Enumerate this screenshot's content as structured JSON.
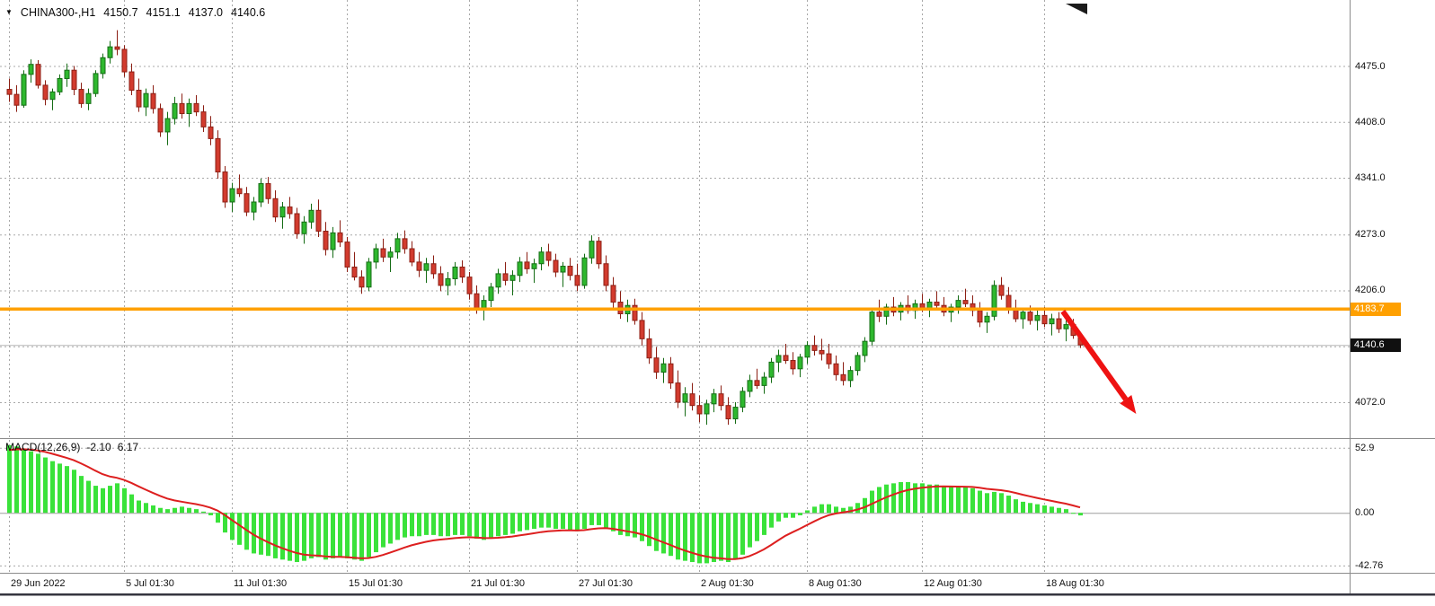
{
  "window": {
    "bg": "#ffffff"
  },
  "header": {
    "collapse_icon": "▼",
    "symbol_period": "CHINA300-,H1",
    "open": "4150.7",
    "high": "4151.1",
    "low": "4137.0",
    "close": "4140.6"
  },
  "indicator_label": {
    "name": "MACD(12,26,9)",
    "main_value": "-2.10",
    "signal_value": "6.17"
  },
  "colors": {
    "up_fill": "#2eb82e",
    "up_stroke": "#156c15",
    "down_fill": "#d23b2e",
    "down_stroke": "#8c1f14",
    "hist": "#3ae23a",
    "signal": "#dd1f1f",
    "hline": "#ffa000",
    "grid": "#a8a8a8",
    "arrow": "#ee1212",
    "bid_line": "#b8b8b8",
    "separator": "#8c8c8c",
    "text": "#111111"
  },
  "price_badges": [
    {
      "name": "hline-price-badge",
      "text": "4183.7",
      "price": 4183.7,
      "bg": "#ffa000",
      "fg": "#ffffff"
    },
    {
      "name": "last-price-badge",
      "text": "4140.6",
      "price": 4140.6,
      "bg": "#101010",
      "fg": "#ffffff"
    }
  ],
  "chart_data": {
    "type": "candlestick",
    "symbol": "CHINA300-",
    "timeframe": "H1",
    "ylim": [
      4030,
      4552
    ],
    "y_ticks": [
      {
        "price": 4475.0,
        "label": "4475.0"
      },
      {
        "price": 4408.0,
        "label": "4408.0"
      },
      {
        "price": 4341.0,
        "label": "4341.0"
      },
      {
        "price": 4273.0,
        "label": "4273.0"
      },
      {
        "price": 4206.0,
        "label": "4206.0"
      },
      {
        "price": 4072.0,
        "label": "4072.0"
      }
    ],
    "grid_levels": [
      4475,
      4408,
      4341,
      4273,
      4206,
      4139,
      4072
    ],
    "x_ticks": [
      {
        "index": 0,
        "label": "29 Jun 2022"
      },
      {
        "index": 16,
        "label": "5 Jul 01:30"
      },
      {
        "index": 31,
        "label": "11 Jul 01:30"
      },
      {
        "index": 47,
        "label": "15 Jul 01:30"
      },
      {
        "index": 64,
        "label": "21 Jul 01:30"
      },
      {
        "index": 79,
        "label": "27 Jul 01:30"
      },
      {
        "index": 96,
        "label": "2 Aug 01:30"
      },
      {
        "index": 111,
        "label": "8 Aug 01:30"
      },
      {
        "index": 127,
        "label": "12 Aug 01:30"
      },
      {
        "index": 144,
        "label": "18 Aug 01:30"
      }
    ],
    "hline": {
      "price": 4183.7
    },
    "last_price": 4140.6,
    "arrow": {
      "from": {
        "index": 146.6,
        "price": 4181
      },
      "to": {
        "index": 156.8,
        "price": 4058
      }
    },
    "candles": [
      [
        4447,
        4460,
        4432,
        4441
      ],
      [
        4441,
        4452,
        4420,
        4428
      ],
      [
        4428,
        4470,
        4425,
        4465
      ],
      [
        4465,
        4483,
        4455,
        4477
      ],
      [
        4477,
        4482,
        4448,
        4452
      ],
      [
        4452,
        4458,
        4428,
        4435
      ],
      [
        4435,
        4448,
        4422,
        4444
      ],
      [
        4444,
        4465,
        4440,
        4460
      ],
      [
        4460,
        4478,
        4450,
        4470
      ],
      [
        4470,
        4475,
        4440,
        4447
      ],
      [
        4447,
        4455,
        4425,
        4430
      ],
      [
        4430,
        4448,
        4422,
        4442
      ],
      [
        4442,
        4470,
        4438,
        4466
      ],
      [
        4466,
        4490,
        4460,
        4485
      ],
      [
        4485,
        4505,
        4478,
        4498
      ],
      [
        4498,
        4518,
        4488,
        4495
      ],
      [
        4495,
        4500,
        4462,
        4468
      ],
      [
        4468,
        4478,
        4440,
        4446
      ],
      [
        4446,
        4460,
        4420,
        4426
      ],
      [
        4426,
        4448,
        4415,
        4442
      ],
      [
        4442,
        4452,
        4418,
        4424
      ],
      [
        4424,
        4430,
        4390,
        4396
      ],
      [
        4396,
        4420,
        4380,
        4412
      ],
      [
        4412,
        4438,
        4405,
        4430
      ],
      [
        4430,
        4442,
        4412,
        4418
      ],
      [
        4418,
        4436,
        4402,
        4430
      ],
      [
        4430,
        4440,
        4415,
        4420
      ],
      [
        4420,
        4428,
        4396,
        4402
      ],
      [
        4402,
        4415,
        4380,
        4388
      ],
      [
        4388,
        4398,
        4340,
        4348
      ],
      [
        4348,
        4355,
        4305,
        4312
      ],
      [
        4312,
        4335,
        4300,
        4328
      ],
      [
        4328,
        4345,
        4318,
        4322
      ],
      [
        4322,
        4330,
        4295,
        4300
      ],
      [
        4300,
        4318,
        4290,
        4312
      ],
      [
        4312,
        4340,
        4306,
        4334
      ],
      [
        4334,
        4342,
        4310,
        4316
      ],
      [
        4316,
        4326,
        4288,
        4294
      ],
      [
        4294,
        4312,
        4280,
        4306
      ],
      [
        4306,
        4318,
        4292,
        4298
      ],
      [
        4298,
        4305,
        4268,
        4274
      ],
      [
        4274,
        4295,
        4262,
        4288
      ],
      [
        4288,
        4310,
        4280,
        4302
      ],
      [
        4302,
        4315,
        4270,
        4277
      ],
      [
        4277,
        4288,
        4248,
        4255
      ],
      [
        4255,
        4282,
        4245,
        4275
      ],
      [
        4275,
        4290,
        4258,
        4264
      ],
      [
        4264,
        4270,
        4228,
        4234
      ],
      [
        4234,
        4252,
        4218,
        4222
      ],
      [
        4222,
        4230,
        4202,
        4210
      ],
      [
        4210,
        4245,
        4205,
        4240
      ],
      [
        4240,
        4262,
        4232,
        4256
      ],
      [
        4256,
        4268,
        4240,
        4246
      ],
      [
        4246,
        4258,
        4228,
        4252
      ],
      [
        4252,
        4275,
        4244,
        4268
      ],
      [
        4268,
        4278,
        4250,
        4256
      ],
      [
        4256,
        4265,
        4235,
        4240
      ],
      [
        4240,
        4252,
        4222,
        4230
      ],
      [
        4230,
        4245,
        4215,
        4238
      ],
      [
        4238,
        4248,
        4220,
        4226
      ],
      [
        4226,
        4235,
        4205,
        4212
      ],
      [
        4212,
        4228,
        4200,
        4220
      ],
      [
        4220,
        4240,
        4212,
        4234
      ],
      [
        4234,
        4242,
        4215,
        4222
      ],
      [
        4222,
        4228,
        4195,
        4202
      ],
      [
        4202,
        4212,
        4178,
        4185
      ],
      [
        4185,
        4200,
        4170,
        4194
      ],
      [
        4194,
        4215,
        4186,
        4210
      ],
      [
        4210,
        4232,
        4202,
        4226
      ],
      [
        4226,
        4240,
        4212,
        4218
      ],
      [
        4218,
        4230,
        4200,
        4224
      ],
      [
        4224,
        4246,
        4216,
        4240
      ],
      [
        4240,
        4252,
        4226,
        4232
      ],
      [
        4232,
        4244,
        4215,
        4238
      ],
      [
        4238,
        4258,
        4230,
        4252
      ],
      [
        4252,
        4262,
        4235,
        4242
      ],
      [
        4242,
        4250,
        4222,
        4228
      ],
      [
        4228,
        4240,
        4210,
        4235
      ],
      [
        4235,
        4245,
        4218,
        4224
      ],
      [
        4224,
        4238,
        4205,
        4212
      ],
      [
        4212,
        4250,
        4208,
        4245
      ],
      [
        4245,
        4272,
        4238,
        4265
      ],
      [
        4265,
        4270,
        4232,
        4238
      ],
      [
        4238,
        4248,
        4205,
        4212
      ],
      [
        4212,
        4222,
        4185,
        4192
      ],
      [
        4192,
        4205,
        4172,
        4178
      ],
      [
        4178,
        4195,
        4168,
        4188
      ],
      [
        4188,
        4196,
        4165,
        4170
      ],
      [
        4170,
        4180,
        4140,
        4148
      ],
      [
        4148,
        4160,
        4118,
        4125
      ],
      [
        4125,
        4138,
        4100,
        4108
      ],
      [
        4108,
        4125,
        4095,
        4118
      ],
      [
        4118,
        4126,
        4088,
        4095
      ],
      [
        4095,
        4110,
        4065,
        4072
      ],
      [
        4072,
        4090,
        4055,
        4082
      ],
      [
        4082,
        4095,
        4062,
        4068
      ],
      [
        4068,
        4080,
        4048,
        4058
      ],
      [
        4058,
        4075,
        4045,
        4070
      ],
      [
        4070,
        4088,
        4060,
        4082
      ],
      [
        4082,
        4092,
        4062,
        4068
      ],
      [
        4068,
        4078,
        4045,
        4052
      ],
      [
        4052,
        4072,
        4046,
        4066
      ],
      [
        4066,
        4090,
        4060,
        4085
      ],
      [
        4085,
        4105,
        4078,
        4098
      ],
      [
        4098,
        4112,
        4088,
        4092
      ],
      [
        4092,
        4108,
        4082,
        4102
      ],
      [
        4102,
        4125,
        4095,
        4120
      ],
      [
        4120,
        4135,
        4108,
        4128
      ],
      [
        4128,
        4142,
        4118,
        4122
      ],
      [
        4122,
        4132,
        4105,
        4112
      ],
      [
        4112,
        4130,
        4102,
        4126
      ],
      [
        4126,
        4145,
        4118,
        4140
      ],
      [
        4140,
        4152,
        4128,
        4134
      ],
      [
        4134,
        4148,
        4122,
        4130
      ],
      [
        4130,
        4142,
        4112,
        4118
      ],
      [
        4118,
        4128,
        4098,
        4105
      ],
      [
        4105,
        4120,
        4092,
        4098
      ],
      [
        4098,
        4115,
        4090,
        4110
      ],
      [
        4110,
        4132,
        4104,
        4128
      ],
      [
        4128,
        4150,
        4120,
        4145
      ],
      [
        4145,
        4185,
        4140,
        4180
      ],
      [
        4180,
        4195,
        4168,
        4175
      ],
      [
        4175,
        4190,
        4165,
        4186
      ],
      [
        4186,
        4198,
        4175,
        4180
      ],
      [
        4180,
        4192,
        4170,
        4188
      ],
      [
        4188,
        4200,
        4178,
        4182
      ],
      [
        4182,
        4195,
        4172,
        4190
      ],
      [
        4190,
        4202,
        4180,
        4185
      ],
      [
        4185,
        4196,
        4174,
        4192
      ],
      [
        4192,
        4205,
        4182,
        4188
      ],
      [
        4188,
        4198,
        4175,
        4180
      ],
      [
        4180,
        4190,
        4168,
        4186
      ],
      [
        4186,
        4200,
        4178,
        4194
      ],
      [
        4194,
        4208,
        4186,
        4190
      ],
      [
        4190,
        4200,
        4175,
        4182
      ],
      [
        4182,
        4192,
        4162,
        4168
      ],
      [
        4168,
        4180,
        4155,
        4175
      ],
      [
        4175,
        4218,
        4170,
        4212
      ],
      [
        4212,
        4222,
        4195,
        4200
      ],
      [
        4200,
        4210,
        4178,
        4185
      ],
      [
        4185,
        4195,
        4168,
        4172
      ],
      [
        4172,
        4185,
        4160,
        4180
      ],
      [
        4180,
        4188,
        4165,
        4170
      ],
      [
        4170,
        4182,
        4158,
        4176
      ],
      [
        4176,
        4186,
        4162,
        4166
      ],
      [
        4166,
        4178,
        4152,
        4172
      ],
      [
        4172,
        4180,
        4155,
        4160
      ],
      [
        4160,
        4170,
        4145,
        4165
      ],
      [
        4165,
        4172,
        4148,
        4152
      ],
      [
        4150.7,
        4151.1,
        4137.0,
        4140.6
      ]
    ],
    "macd": {
      "type": "bar",
      "params": "12,26,9",
      "ylim": [
        -48,
        60
      ],
      "y_ticks": [
        {
          "value": 52.9,
          "label": "52.9"
        },
        {
          "value": 0,
          "label": "0.00"
        },
        {
          "value": -42.76,
          "label": "-42.76"
        }
      ],
      "main_last": -2.1,
      "signal_last": 6.17,
      "signal_alpha": 0.2,
      "signal_seed": 50,
      "histogram": [
        55,
        54,
        52,
        50,
        48,
        45,
        42,
        40,
        38,
        35,
        30,
        26,
        22,
        20,
        22,
        24,
        20,
        15,
        10,
        8,
        6,
        4,
        3,
        4,
        5,
        4,
        3,
        1,
        -2,
        -8,
        -16,
        -22,
        -26,
        -30,
        -33,
        -34,
        -35,
        -37,
        -38,
        -39,
        -40,
        -39,
        -37,
        -36,
        -38,
        -37,
        -36,
        -37,
        -38,
        -39,
        -36,
        -32,
        -28,
        -25,
        -22,
        -20,
        -19,
        -19,
        -18,
        -18,
        -19,
        -19,
        -18,
        -18,
        -19,
        -21,
        -22,
        -21,
        -19,
        -18,
        -17,
        -15,
        -14,
        -13,
        -12,
        -12,
        -13,
        -13,
        -14,
        -15,
        -13,
        -10,
        -10,
        -12,
        -15,
        -18,
        -19,
        -20,
        -23,
        -27,
        -31,
        -33,
        -35,
        -38,
        -39,
        -40,
        -41,
        -41,
        -40,
        -39,
        -40,
        -38,
        -34,
        -28,
        -23,
        -18,
        -12,
        -7,
        -4,
        -4,
        -2,
        2,
        5,
        7,
        7,
        5,
        4,
        5,
        8,
        12,
        18,
        21,
        23,
        24,
        25,
        25,
        24,
        24,
        23,
        23,
        22,
        21,
        21,
        21,
        20,
        18,
        16,
        17,
        16,
        14,
        11,
        9,
        8,
        7,
        6,
        5,
        4,
        3,
        0,
        -2.1
      ]
    }
  }
}
